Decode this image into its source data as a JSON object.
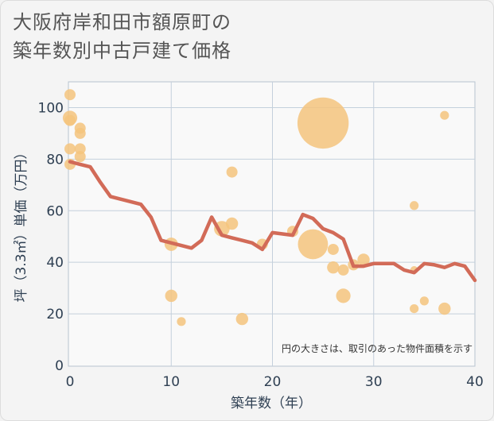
{
  "header": {
    "title_line1": "大阪府岸和田市額原町の",
    "title_line2": "築年数別中古戸建て価格"
  },
  "chart_data": {
    "type": "scatter",
    "title": "大阪府岸和田市額原町の築年数別中古戸建て価格",
    "xlabel": "築年数（年）",
    "ylabel": "坪（3.3㎡）単価（万円）",
    "xlim": [
      0,
      40
    ],
    "ylim": [
      0,
      110
    ],
    "xticks": [
      0,
      10,
      20,
      30,
      40
    ],
    "yticks": [
      0,
      20,
      40,
      60,
      80,
      100
    ],
    "grid": true,
    "note": "円の大きさは、取引のあった物件面積を示す",
    "colors": {
      "bubble": "#f5c47e",
      "line": "#d26b58"
    },
    "scatter": [
      {
        "x": 0,
        "y": 105,
        "size": 1.0
      },
      {
        "x": 0,
        "y": 96,
        "size": 1.3
      },
      {
        "x": 0,
        "y": 95,
        "size": 1.0
      },
      {
        "x": 0,
        "y": 84,
        "size": 1.0
      },
      {
        "x": 0,
        "y": 78,
        "size": 1.0
      },
      {
        "x": 1,
        "y": 92,
        "size": 1.0
      },
      {
        "x": 1,
        "y": 90,
        "size": 1.0
      },
      {
        "x": 1,
        "y": 84,
        "size": 1.0
      },
      {
        "x": 1,
        "y": 81,
        "size": 1.0
      },
      {
        "x": 10,
        "y": 47,
        "size": 1.2
      },
      {
        "x": 10,
        "y": 27,
        "size": 1.1
      },
      {
        "x": 11,
        "y": 17,
        "size": 0.8
      },
      {
        "x": 15,
        "y": 53,
        "size": 1.4
      },
      {
        "x": 16,
        "y": 75,
        "size": 1.0
      },
      {
        "x": 16,
        "y": 55,
        "size": 1.1
      },
      {
        "x": 17,
        "y": 18,
        "size": 1.1
      },
      {
        "x": 19,
        "y": 47,
        "size": 1.0
      },
      {
        "x": 22,
        "y": 52,
        "size": 1.0
      },
      {
        "x": 24,
        "y": 47,
        "size": 2.7
      },
      {
        "x": 25,
        "y": 94,
        "size": 4.6
      },
      {
        "x": 26,
        "y": 45,
        "size": 1.0
      },
      {
        "x": 26,
        "y": 38,
        "size": 1.1
      },
      {
        "x": 27,
        "y": 37,
        "size": 1.0
      },
      {
        "x": 27,
        "y": 27,
        "size": 1.3
      },
      {
        "x": 28,
        "y": 39,
        "size": 1.0
      },
      {
        "x": 29,
        "y": 41,
        "size": 1.1
      },
      {
        "x": 34,
        "y": 62,
        "size": 0.8
      },
      {
        "x": 34,
        "y": 37,
        "size": 0.7
      },
      {
        "x": 34,
        "y": 22,
        "size": 0.8
      },
      {
        "x": 35,
        "y": 25,
        "size": 0.8
      },
      {
        "x": 37,
        "y": 97,
        "size": 0.8
      },
      {
        "x": 37,
        "y": 22,
        "size": 1.1
      }
    ],
    "trend": {
      "x": [
        0,
        1,
        2,
        3,
        4,
        5,
        6,
        7,
        8,
        9,
        10,
        11,
        12,
        13,
        14,
        15,
        16,
        17,
        18,
        19,
        20,
        21,
        22,
        23,
        24,
        25,
        26,
        27,
        28,
        29,
        30,
        31,
        32,
        33,
        34,
        35,
        36,
        37,
        38,
        39,
        40
      ],
      "y": [
        79,
        78,
        77,
        71,
        65.5,
        64.5,
        63.5,
        62.5,
        57.5,
        48.5,
        47.5,
        46.5,
        45.5,
        48.5,
        57.5,
        50.5,
        49.5,
        48.5,
        47.5,
        45,
        51.5,
        51,
        50.5,
        58.5,
        57,
        53,
        51.5,
        49,
        38.5,
        38.5,
        39.5,
        39.5,
        39.5,
        37,
        36,
        39.5,
        39,
        38,
        39.5,
        38.5,
        33
      ]
    }
  }
}
